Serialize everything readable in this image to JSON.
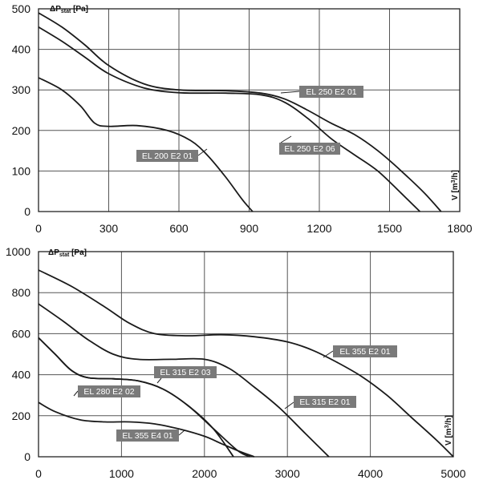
{
  "chart_data": [
    {
      "type": "line",
      "ylabel": {
        "prefix": "ΔP",
        "sub": "stat",
        "unit": " [Pa]"
      },
      "xlabel": {
        "prefix": "V [m",
        "sup": "3",
        "suffix": "/h]"
      },
      "xlim": [
        0,
        1800
      ],
      "ylim": [
        0,
        500
      ],
      "xticks": [
        "0",
        "300",
        "600",
        "900",
        "1200",
        "1500",
        "1800"
      ],
      "yticks": [
        "0",
        "100",
        "200",
        "300",
        "400",
        "500"
      ],
      "grid": true,
      "series": [
        {
          "name": "EL 250 E2 01",
          "x": [
            0,
            100,
            200,
            300,
            450,
            600,
            800,
            950,
            1050,
            1150,
            1250,
            1350,
            1450,
            1550,
            1650,
            1720
          ],
          "y": [
            490,
            455,
            410,
            360,
            315,
            300,
            298,
            292,
            278,
            250,
            218,
            190,
            150,
            100,
            45,
            0
          ]
        },
        {
          "name": "EL 250 E2 06",
          "x": [
            0,
            100,
            200,
            300,
            450,
            600,
            800,
            950,
            1050,
            1150,
            1250,
            1350,
            1450,
            1550,
            1630
          ],
          "y": [
            455,
            420,
            380,
            340,
            305,
            293,
            292,
            288,
            270,
            230,
            180,
            140,
            100,
            45,
            0
          ]
        },
        {
          "name": "EL 200 E2 01",
          "x": [
            0,
            100,
            180,
            240,
            300,
            420,
            550,
            650,
            720,
            800,
            870,
            915
          ],
          "y": [
            330,
            300,
            260,
            218,
            210,
            212,
            200,
            175,
            140,
            85,
            30,
            0
          ]
        }
      ],
      "labels": [
        "EL 250 E2 01",
        "EL 250 E2 06",
        "EL 200 E2 01"
      ]
    },
    {
      "type": "line",
      "ylabel": {
        "prefix": "ΔP",
        "sub": "stat",
        "unit": " [Pa]"
      },
      "xlabel": {
        "prefix": "V [m",
        "sup": "3",
        "suffix": "/h]"
      },
      "xlim": [
        0,
        5000
      ],
      "ylim": [
        0,
        1000
      ],
      "xticks": [
        "0",
        "1000",
        "2000",
        "3000",
        "4000",
        "5000"
      ],
      "yticks": [
        "0",
        "200",
        "400",
        "600",
        "800",
        "1000"
      ],
      "grid": true,
      "series": [
        {
          "name": "EL 355 E2 01",
          "x": [
            0,
            400,
            800,
            1100,
            1400,
            1800,
            2200,
            2600,
            3000,
            3300,
            3600,
            3900,
            4200,
            4500,
            4800,
            5000
          ],
          "y": [
            910,
            830,
            730,
            650,
            600,
            590,
            595,
            585,
            560,
            520,
            460,
            390,
            300,
            190,
            80,
            0
          ]
        },
        {
          "name": "EL 315 E2 01",
          "x": [
            0,
            300,
            600,
            900,
            1200,
            1600,
            2000,
            2300,
            2600,
            2900,
            3200,
            3500
          ],
          "y": [
            745,
            660,
            570,
            500,
            475,
            475,
            475,
            430,
            340,
            240,
            120,
            0
          ]
        },
        {
          "name": "EL 315 E2 03",
          "x": [
            0,
            200,
            400,
            600,
            900,
            1200,
            1500,
            1800,
            2100,
            2400,
            2550
          ],
          "y": [
            580,
            500,
            420,
            385,
            380,
            370,
            330,
            250,
            140,
            30,
            0
          ]
        },
        {
          "name": "EL 280 E2 02",
          "x": [
            0,
            200,
            400,
            600,
            900,
            1200,
            1500,
            1800,
            2100,
            2350
          ],
          "y": [
            580,
            500,
            420,
            385,
            380,
            370,
            330,
            250,
            140,
            0
          ]
        },
        {
          "name": "EL 355 E4 01",
          "x": [
            0,
            200,
            500,
            800,
            1100,
            1400,
            1700,
            2000,
            2200,
            2400,
            2600
          ],
          "y": [
            265,
            220,
            180,
            170,
            170,
            160,
            135,
            100,
            65,
            30,
            0
          ]
        }
      ],
      "labels": [
        "EL 355 E2 01",
        "EL 315 E2 01",
        "EL 315 E2 03",
        "EL 280 E2 02",
        "EL 355 E4 01"
      ]
    }
  ]
}
